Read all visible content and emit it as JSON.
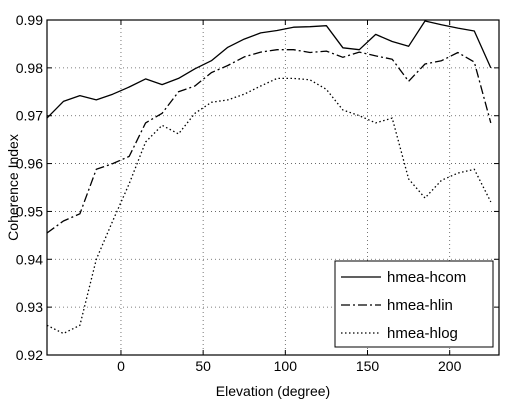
{
  "chart_data": {
    "type": "line",
    "title": "",
    "xlabel": "Elevation (degree)",
    "ylabel": "Coherence Index",
    "xlim": [
      -45,
      230
    ],
    "ylim": [
      0.92,
      0.99
    ],
    "xticks": [
      0,
      50,
      100,
      150,
      200
    ],
    "xtick_labels": [
      "0",
      "50",
      "100",
      "150",
      "200"
    ],
    "yticks": [
      0.92,
      0.93,
      0.94,
      0.95,
      0.96,
      0.97,
      0.98,
      0.99
    ],
    "ytick_labels": [
      "0.92",
      "0.93",
      "0.94",
      "0.95",
      "0.96",
      "0.97",
      "0.98",
      "0.99"
    ],
    "grid": true,
    "legend_position": "bottom-right",
    "series": [
      {
        "name": "hmea-hcom",
        "style": "solid",
        "color": "#000000",
        "x": [
          -45,
          -35,
          -25,
          -15,
          -5,
          5,
          15,
          25,
          35,
          45,
          55,
          65,
          75,
          85,
          95,
          105,
          115,
          125,
          135,
          145,
          155,
          165,
          175,
          185,
          195,
          205,
          215,
          225
        ],
        "y": [
          0.9695,
          0.973,
          0.9742,
          0.9733,
          0.9745,
          0.976,
          0.9777,
          0.9765,
          0.9778,
          0.9798,
          0.9815,
          0.9843,
          0.986,
          0.9873,
          0.9878,
          0.9885,
          0.9886,
          0.9888,
          0.9842,
          0.9838,
          0.987,
          0.9855,
          0.9845,
          0.9898,
          0.989,
          0.9883,
          0.9877,
          0.98
        ]
      },
      {
        "name": "hmea-hlin",
        "style": "dashdot",
        "color": "#000000",
        "x": [
          -45,
          -35,
          -25,
          -15,
          -5,
          5,
          15,
          25,
          35,
          45,
          55,
          65,
          75,
          85,
          95,
          105,
          115,
          125,
          135,
          145,
          155,
          165,
          175,
          185,
          195,
          205,
          215,
          225
        ],
        "y": [
          0.9455,
          0.948,
          0.9495,
          0.9588,
          0.96,
          0.9615,
          0.9685,
          0.9705,
          0.975,
          0.9762,
          0.979,
          0.9805,
          0.9823,
          0.9833,
          0.9838,
          0.9838,
          0.9832,
          0.9835,
          0.9822,
          0.9833,
          0.9825,
          0.9818,
          0.9772,
          0.9808,
          0.9815,
          0.9832,
          0.9812,
          0.9685
        ]
      },
      {
        "name": "hmea-hlog",
        "style": "dotted",
        "color": "#000000",
        "x": [
          -45,
          -35,
          -25,
          -15,
          -5,
          5,
          15,
          25,
          35,
          45,
          55,
          65,
          75,
          85,
          95,
          105,
          115,
          125,
          135,
          145,
          155,
          165,
          175,
          185,
          195,
          205,
          215,
          225
        ],
        "y": [
          0.9262,
          0.9245,
          0.9262,
          0.94,
          0.948,
          0.9558,
          0.9645,
          0.968,
          0.9662,
          0.9705,
          0.9728,
          0.9733,
          0.9745,
          0.9762,
          0.9778,
          0.9778,
          0.9775,
          0.9755,
          0.9712,
          0.97,
          0.9685,
          0.9695,
          0.9568,
          0.9528,
          0.9565,
          0.958,
          0.9588,
          0.952
        ]
      }
    ]
  }
}
